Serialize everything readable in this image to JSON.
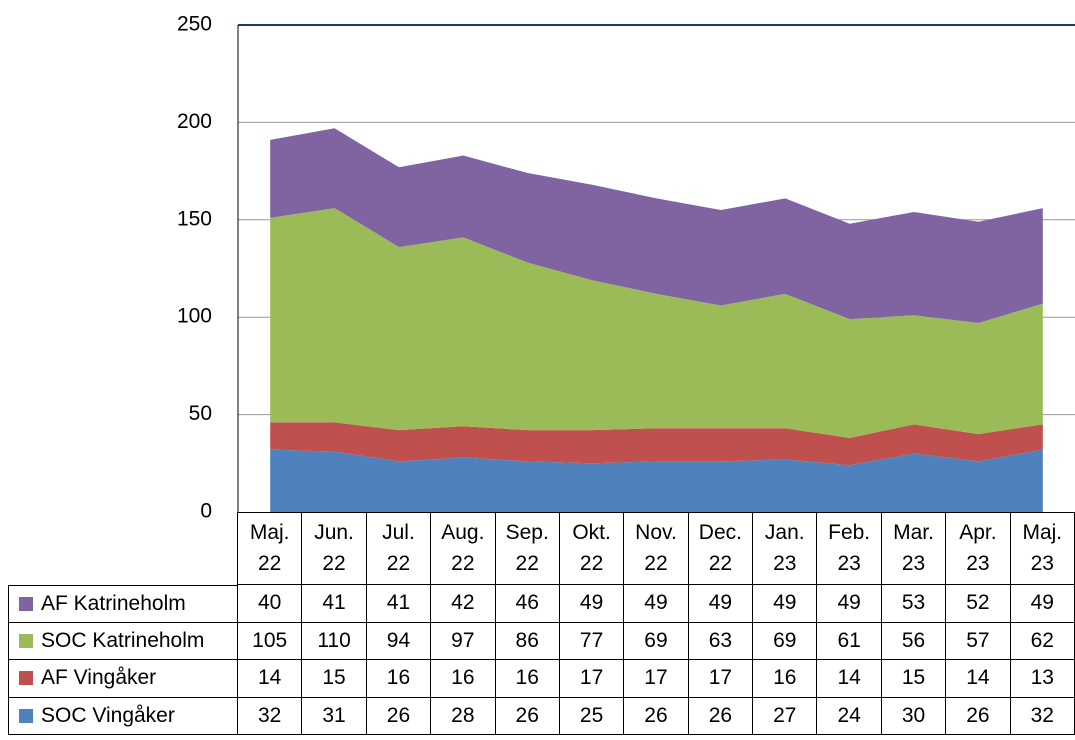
{
  "chart_data": {
    "type": "stacked_area",
    "categories": [
      "Maj. 22",
      "Jun. 22",
      "Jul. 22",
      "Aug. 22",
      "Sep. 22",
      "Okt. 22",
      "Nov. 22",
      "Dec. 22",
      "Jan. 23",
      "Feb. 23",
      "Mar. 23",
      "Apr. 23",
      "Maj. 23"
    ],
    "series": [
      {
        "name": "SOC Vingåker",
        "color": "#4f81bd",
        "values": [
          32,
          31,
          26,
          28,
          26,
          25,
          26,
          26,
          27,
          24,
          30,
          26,
          32
        ]
      },
      {
        "name": "AF Vingåker",
        "color": "#c0504d",
        "values": [
          14,
          15,
          16,
          16,
          16,
          17,
          17,
          17,
          16,
          14,
          15,
          14,
          13
        ]
      },
      {
        "name": "SOC Katrineholm",
        "color": "#9bbb59",
        "values": [
          105,
          110,
          94,
          97,
          86,
          77,
          69,
          63,
          69,
          61,
          56,
          57,
          62
        ]
      },
      {
        "name": "AF Katrineholm",
        "color": "#8064a2",
        "values": [
          40,
          41,
          41,
          42,
          46,
          49,
          49,
          49,
          49,
          49,
          53,
          52,
          49
        ]
      }
    ],
    "ylim": [
      0,
      250
    ],
    "yticks": [
      0,
      50,
      100,
      150,
      200,
      250
    ],
    "grid": true
  }
}
